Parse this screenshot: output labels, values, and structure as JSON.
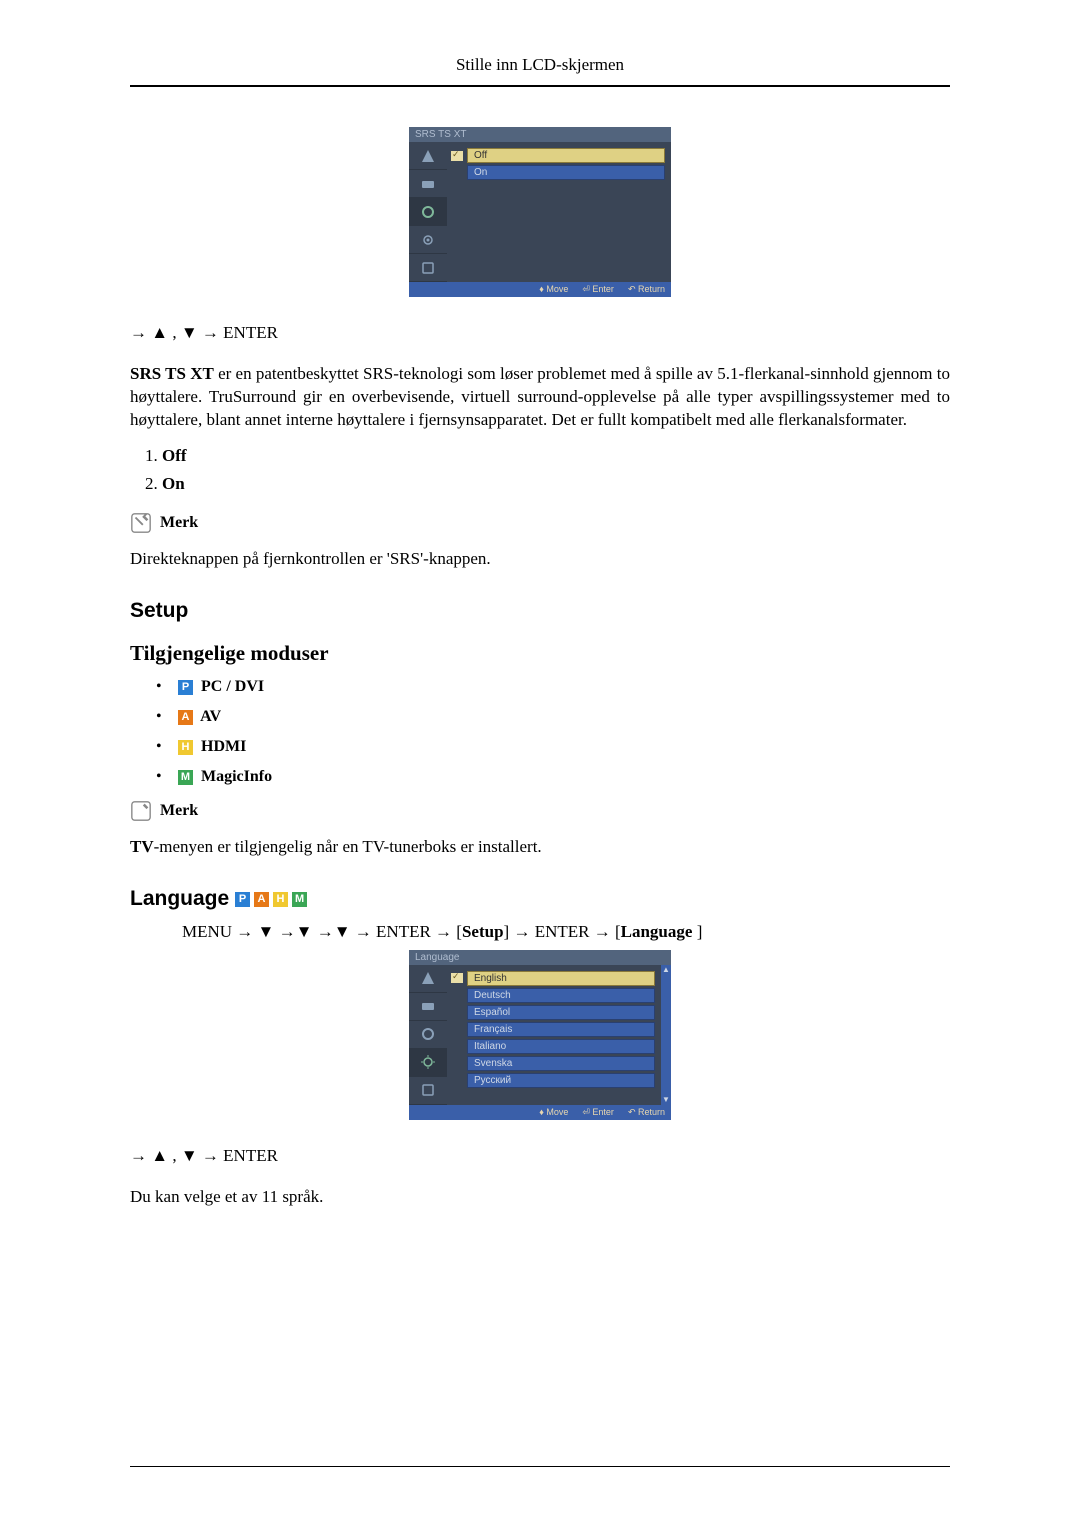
{
  "header": {
    "title": "Stille inn LCD-skjermen"
  },
  "osd1": {
    "title": "SRS TS XT",
    "items": [
      {
        "label": "Off",
        "checked": true,
        "style": "yellow"
      },
      {
        "label": "On",
        "checked": false,
        "style": "blue"
      }
    ],
    "footer": {
      "move": "Move",
      "enter": "Enter",
      "return": "Return"
    }
  },
  "nav1": "→ ▲ , ▼ → ENTER",
  "paragraph_srs": "SRS TS XT er en patentbeskyttet SRS-teknologi som løser problemet med å spille av 5.1-flerkanal-sinnhold gjennom to høyttalere. TruSurround gir en overbevisende, virtuell surround-opplevelse på alle typer avspillingssystemer med to høyttalere, blant annet interne høyttalere i fjernsynsapparatet. Det er fullt kompatibelt med alle flerkanalsformater.",
  "options_srs": {
    "item1": "Off",
    "item2": "On"
  },
  "merk1": {
    "label": "Merk",
    "text": "Direkteknappen på fjernkontrollen er 'SRS'-knappen."
  },
  "setup_heading": "Setup",
  "modes_heading": "Tilgjengelige moduser",
  "modes": {
    "pc": "PC / DVI",
    "av": "AV",
    "hdmi": "HDMI",
    "magic": "MagicInfo"
  },
  "merk2": {
    "label": "Merk",
    "text_prefix": "TV",
    "text_rest": "-menyen er tilgjengelig når en TV-tunerboks er installert."
  },
  "language_heading": "Language",
  "menu_path": {
    "p1": "MENU → ▼ →▼ →▼ → ENTER → [",
    "setup": "Setup",
    "p2": "] → ENTER → [",
    "lang": "Language",
    "p3": " ]"
  },
  "osd2": {
    "title": "Language",
    "items": [
      {
        "label": "English",
        "checked": true,
        "style": "yellow"
      },
      {
        "label": "Deutsch",
        "checked": false,
        "style": "blue"
      },
      {
        "label": "Español",
        "checked": false,
        "style": "blue"
      },
      {
        "label": "Français",
        "checked": false,
        "style": "blue"
      },
      {
        "label": "Italiano",
        "checked": false,
        "style": "blue"
      },
      {
        "label": "Svenska",
        "checked": false,
        "style": "blue"
      },
      {
        "label": "Русский",
        "checked": false,
        "style": "blue"
      }
    ],
    "footer": {
      "move": "Move",
      "enter": "Enter",
      "return": "Return"
    }
  },
  "nav2": "→ ▲ , ▼ → ENTER",
  "final_text": "Du kan velge et av 11 språk.",
  "colors": {
    "badge_p": "#2a7fd4",
    "badge_a": "#e67817",
    "badge_h": "#f0c830",
    "badge_m": "#3aa655"
  }
}
